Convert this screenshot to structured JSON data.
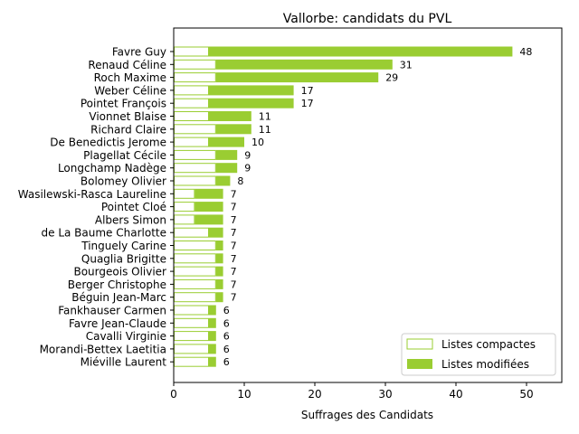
{
  "chart_data": {
    "type": "bar",
    "orientation": "horizontal",
    "stacked": true,
    "title": "Vallorbe: candidats du PVL",
    "xlabel": "Suffrages des Candidats",
    "ylabel": "",
    "xlim": [
      0,
      55
    ],
    "xticks": [
      0,
      10,
      20,
      30,
      40,
      50
    ],
    "grid": false,
    "legend_position": "bottom-right",
    "colors": {
      "compact": "#9acd32",
      "modified": "#9acd32",
      "axis": "#000000"
    },
    "categories": [
      "Favre Guy",
      "Renaud Céline",
      "Roch Maxime",
      "Weber Céline",
      "Pointet François",
      "Vionnet Blaise",
      "Richard Claire",
      "De Benedictis Jerome",
      "Plagellat Cécile",
      "Longchamp Nadège",
      "Bolomey Olivier",
      "Wasilewski-Rasca Laureline",
      "Pointet Cloé",
      "Albers Simon",
      "de La Baume Charlotte",
      "Tinguely Carine",
      "Quaglia Brigitte",
      "Bourgeois Olivier",
      "Berger Christophe",
      "Béguin Jean-Marc",
      "Fankhauser Carmen",
      "Favre Jean-Claude",
      "Cavalli Virginie",
      "Morandi-Bettex Laetitia",
      "Miéville Laurent"
    ],
    "series": [
      {
        "name": "Listes compactes",
        "style": "outline",
        "values": [
          5,
          6,
          6,
          5,
          5,
          5,
          6,
          5,
          6,
          6,
          6,
          3,
          3,
          3,
          5,
          6,
          6,
          6,
          6,
          6,
          5,
          5,
          5,
          5,
          5
        ]
      },
      {
        "name": "Listes modifiées",
        "style": "filled",
        "values": [
          43,
          25,
          23,
          12,
          12,
          6,
          5,
          5,
          3,
          3,
          2,
          4,
          4,
          4,
          2,
          1,
          1,
          1,
          1,
          1,
          1,
          1,
          1,
          1,
          1
        ]
      }
    ],
    "totals": [
      48,
      31,
      29,
      17,
      17,
      11,
      11,
      10,
      9,
      9,
      8,
      7,
      7,
      7,
      7,
      7,
      7,
      7,
      7,
      7,
      6,
      6,
      6,
      6,
      6
    ]
  }
}
